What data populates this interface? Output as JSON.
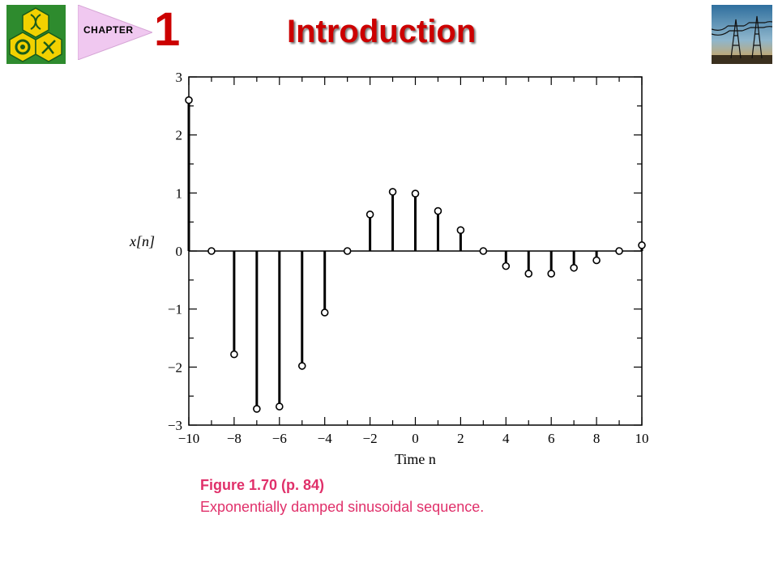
{
  "header": {
    "chapter_label": "CHAPTER",
    "chapter_number": "1",
    "title": "Introduction",
    "logo_icon": "hexagon-emblem-icon",
    "photo_icon": "power-transmission-towers-photo"
  },
  "caption": {
    "figure": "Figure 1.70  (p. 84)",
    "description": "Exponentially damped sinusoidal sequence."
  },
  "colors": {
    "title": "#cc0000",
    "caption": "#e0306a",
    "logo_green": "#2e8b2e",
    "logo_yellow": "#f2d100"
  },
  "chart_data": {
    "type": "stem",
    "title": "",
    "xlabel": "Time n",
    "ylabel": "x[n]",
    "xlim": [
      -10,
      10
    ],
    "ylim": [
      -3,
      3
    ],
    "xticks": [
      -10,
      -8,
      -6,
      -4,
      -2,
      0,
      2,
      4,
      6,
      8,
      10
    ],
    "yticks": [
      -3,
      -2,
      -1,
      0,
      1,
      2,
      3
    ],
    "xtick_labels": [
      "−10",
      "−8",
      "−6",
      "−4",
      "−2",
      "0",
      "2",
      "4",
      "6",
      "8",
      "10"
    ],
    "ytick_labels": [
      "−3",
      "−2",
      "−1",
      "0",
      "1",
      "2",
      "3"
    ],
    "x": [
      -10,
      -9,
      -8,
      -7,
      -6,
      -5,
      -4,
      -3,
      -2,
      -1,
      0,
      1,
      2,
      3,
      4,
      5,
      6,
      7,
      8,
      9,
      10
    ],
    "values": [
      2.6,
      0,
      -1.78,
      -2.72,
      -2.68,
      -1.98,
      -1.06,
      0,
      0.63,
      1.02,
      0.99,
      0.69,
      0.36,
      0,
      -0.26,
      -0.39,
      -0.39,
      -0.29,
      -0.16,
      0,
      0.1
    ],
    "grid": false
  }
}
